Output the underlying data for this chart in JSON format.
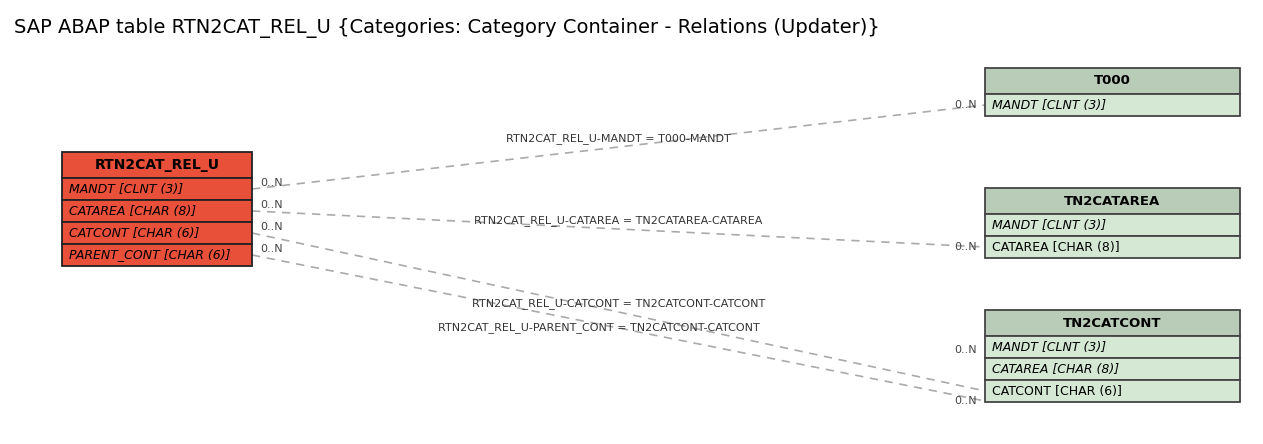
{
  "title": "SAP ABAP table RTN2CAT_REL_U {Categories: Category Container - Relations (Updater)}",
  "title_fontsize": 14,
  "bg_color": "#ffffff",
  "main_table": {
    "name": "RTN2CAT_REL_U",
    "header_color": "#e8503a",
    "body_color": "#e8503a",
    "border_color": "#222222",
    "fields": [
      "MANDT [CLNT (3)]",
      "CATAREA [CHAR (8)]",
      "CATCONT [CHAR (6)]",
      "PARENT_CONT [CHAR (6)]"
    ]
  },
  "ref_tables": [
    {
      "name": "T000",
      "header_color": "#b8ccb8",
      "body_color": "#d4e8d4",
      "border_color": "#444444",
      "fields": [
        "MANDT [CLNT (3)]"
      ],
      "fields_italic": [
        true
      ],
      "fields_underline": [
        true
      ]
    },
    {
      "name": "TN2CATAREA",
      "header_color": "#b8ccb8",
      "body_color": "#d4e8d4",
      "border_color": "#444444",
      "fields": [
        "MANDT [CLNT (3)]",
        "CATAREA [CHAR (8)]"
      ],
      "fields_italic": [
        true,
        false
      ],
      "fields_underline": [
        true,
        true
      ]
    },
    {
      "name": "TN2CATCONT",
      "header_color": "#b8ccb8",
      "body_color": "#d4e8d4",
      "border_color": "#444444",
      "fields": [
        "MANDT [CLNT (3)]",
        "CATAREA [CHAR (8)]",
        "CATCONT [CHAR (6)]"
      ],
      "fields_italic": [
        true,
        true,
        false
      ],
      "fields_underline": [
        true,
        true,
        true
      ]
    }
  ],
  "line_color": "#aaaaaa",
  "cardinality_color": "#444444",
  "label_color": "#333333"
}
